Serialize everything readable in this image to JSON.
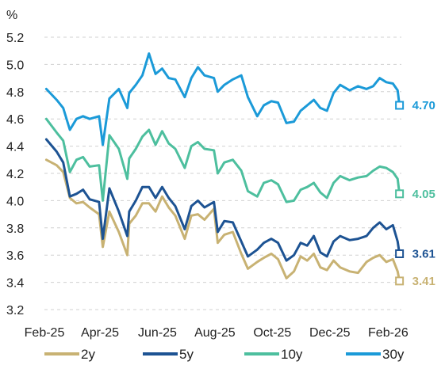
{
  "chart_data": {
    "type": "line",
    "ylabel": "%",
    "ylim": [
      3.2,
      5.2
    ],
    "yticks": [
      3.2,
      3.4,
      3.6,
      3.8,
      4.0,
      4.2,
      4.4,
      4.6,
      4.8,
      5.0,
      5.2
    ],
    "ytick_labels": [
      "3.2",
      "3.4",
      "3.6",
      "3.8",
      "4.0",
      "4.2",
      "4.4",
      "4.6",
      "4.8",
      "5.0",
      "5.2"
    ],
    "xlim": [
      "2025-02-01",
      "2026-02-15"
    ],
    "xticks": [
      "2025-02-01",
      "2025-04-01",
      "2025-06-01",
      "2025-08-01",
      "2025-10-01",
      "2025-12-01",
      "2026-02-01"
    ],
    "xtick_labels": [
      "Feb-25",
      "Apr-25",
      "Jun-25",
      "Aug-25",
      "Oct-25",
      "Dec-25",
      "Feb-26"
    ],
    "grid": "horizontal-dashed",
    "legend": "bottom",
    "series": [
      {
        "name": "2y",
        "color": "#c8b273",
        "end_label": "3.41",
        "points": [
          [
            "2025-02-03",
            4.3
          ],
          [
            "2025-02-14",
            4.26
          ],
          [
            "2025-02-21",
            4.21
          ],
          [
            "2025-02-28",
            4.02
          ],
          [
            "2025-03-07",
            3.98
          ],
          [
            "2025-03-14",
            3.99
          ],
          [
            "2025-03-21",
            3.95
          ],
          [
            "2025-03-31",
            3.9
          ],
          [
            "2025-04-04",
            3.66
          ],
          [
            "2025-04-11",
            3.92
          ],
          [
            "2025-04-21",
            3.77
          ],
          [
            "2025-04-30",
            3.6
          ],
          [
            "2025-05-02",
            3.83
          ],
          [
            "2025-05-09",
            3.89
          ],
          [
            "2025-05-16",
            3.98
          ],
          [
            "2025-05-23",
            3.98
          ],
          [
            "2025-05-30",
            3.92
          ],
          [
            "2025-06-06",
            4.03
          ],
          [
            "2025-06-13",
            3.95
          ],
          [
            "2025-06-20",
            3.89
          ],
          [
            "2025-06-30",
            3.72
          ],
          [
            "2025-07-07",
            3.89
          ],
          [
            "2025-07-14",
            3.9
          ],
          [
            "2025-07-21",
            3.86
          ],
          [
            "2025-07-31",
            3.94
          ],
          [
            "2025-08-04",
            3.69
          ],
          [
            "2025-08-11",
            3.75
          ],
          [
            "2025-08-20",
            3.77
          ],
          [
            "2025-08-29",
            3.61
          ],
          [
            "2025-09-05",
            3.5
          ],
          [
            "2025-09-15",
            3.55
          ],
          [
            "2025-09-22",
            3.58
          ],
          [
            "2025-09-30",
            3.61
          ],
          [
            "2025-10-07",
            3.57
          ],
          [
            "2025-10-16",
            3.43
          ],
          [
            "2025-10-24",
            3.48
          ],
          [
            "2025-10-31",
            3.59
          ],
          [
            "2025-11-07",
            3.56
          ],
          [
            "2025-11-14",
            3.61
          ],
          [
            "2025-11-21",
            3.51
          ],
          [
            "2025-11-28",
            3.49
          ],
          [
            "2025-12-05",
            3.56
          ],
          [
            "2025-12-12",
            3.51
          ],
          [
            "2025-12-22",
            3.48
          ],
          [
            "2025-12-31",
            3.47
          ],
          [
            "2026-01-09",
            3.55
          ],
          [
            "2026-01-16",
            3.58
          ],
          [
            "2026-01-23",
            3.6
          ],
          [
            "2026-01-30",
            3.55
          ],
          [
            "2026-02-06",
            3.57
          ],
          [
            "2026-02-11",
            3.48
          ],
          [
            "2026-02-13",
            3.41
          ]
        ]
      },
      {
        "name": "5y",
        "color": "#1d5393",
        "end_label": "3.61",
        "points": [
          [
            "2025-02-03",
            4.45
          ],
          [
            "2025-02-14",
            4.36
          ],
          [
            "2025-02-21",
            4.28
          ],
          [
            "2025-02-28",
            4.03
          ],
          [
            "2025-03-07",
            4.05
          ],
          [
            "2025-03-14",
            4.08
          ],
          [
            "2025-03-21",
            4.01
          ],
          [
            "2025-03-31",
            3.99
          ],
          [
            "2025-04-04",
            3.72
          ],
          [
            "2025-04-11",
            4.09
          ],
          [
            "2025-04-21",
            3.92
          ],
          [
            "2025-04-30",
            3.74
          ],
          [
            "2025-05-02",
            3.92
          ],
          [
            "2025-05-09",
            4.0
          ],
          [
            "2025-05-16",
            4.1
          ],
          [
            "2025-05-23",
            4.1
          ],
          [
            "2025-05-30",
            4.02
          ],
          [
            "2025-06-06",
            4.1
          ],
          [
            "2025-06-13",
            4.02
          ],
          [
            "2025-06-20",
            3.96
          ],
          [
            "2025-06-30",
            3.79
          ],
          [
            "2025-07-07",
            3.96
          ],
          [
            "2025-07-14",
            4.0
          ],
          [
            "2025-07-21",
            3.95
          ],
          [
            "2025-07-31",
            3.99
          ],
          [
            "2025-08-04",
            3.77
          ],
          [
            "2025-08-11",
            3.85
          ],
          [
            "2025-08-20",
            3.84
          ],
          [
            "2025-08-29",
            3.7
          ],
          [
            "2025-09-05",
            3.59
          ],
          [
            "2025-09-15",
            3.64
          ],
          [
            "2025-09-22",
            3.69
          ],
          [
            "2025-09-30",
            3.72
          ],
          [
            "2025-10-07",
            3.69
          ],
          [
            "2025-10-16",
            3.56
          ],
          [
            "2025-10-24",
            3.6
          ],
          [
            "2025-10-31",
            3.69
          ],
          [
            "2025-11-07",
            3.67
          ],
          [
            "2025-11-14",
            3.74
          ],
          [
            "2025-11-21",
            3.62
          ],
          [
            "2025-11-28",
            3.59
          ],
          [
            "2025-12-05",
            3.7
          ],
          [
            "2025-12-12",
            3.74
          ],
          [
            "2025-12-22",
            3.71
          ],
          [
            "2025-12-31",
            3.72
          ],
          [
            "2026-01-09",
            3.74
          ],
          [
            "2026-01-16",
            3.8
          ],
          [
            "2026-01-23",
            3.84
          ],
          [
            "2026-01-30",
            3.79
          ],
          [
            "2026-02-06",
            3.82
          ],
          [
            "2026-02-11",
            3.7
          ],
          [
            "2026-02-13",
            3.61
          ]
        ]
      },
      {
        "name": "10y",
        "color": "#4dbf9e",
        "end_label": "4.05",
        "points": [
          [
            "2025-02-03",
            4.6
          ],
          [
            "2025-02-14",
            4.5
          ],
          [
            "2025-02-21",
            4.44
          ],
          [
            "2025-02-28",
            4.21
          ],
          [
            "2025-03-07",
            4.3
          ],
          [
            "2025-03-14",
            4.32
          ],
          [
            "2025-03-21",
            4.25
          ],
          [
            "2025-03-31",
            4.26
          ],
          [
            "2025-04-04",
            4.0
          ],
          [
            "2025-04-11",
            4.48
          ],
          [
            "2025-04-21",
            4.38
          ],
          [
            "2025-04-30",
            4.16
          ],
          [
            "2025-05-02",
            4.31
          ],
          [
            "2025-05-09",
            4.38
          ],
          [
            "2025-05-16",
            4.47
          ],
          [
            "2025-05-23",
            4.52
          ],
          [
            "2025-05-30",
            4.41
          ],
          [
            "2025-06-06",
            4.51
          ],
          [
            "2025-06-13",
            4.42
          ],
          [
            "2025-06-20",
            4.38
          ],
          [
            "2025-06-30",
            4.24
          ],
          [
            "2025-07-07",
            4.4
          ],
          [
            "2025-07-14",
            4.43
          ],
          [
            "2025-07-21",
            4.38
          ],
          [
            "2025-07-31",
            4.37
          ],
          [
            "2025-08-04",
            4.2
          ],
          [
            "2025-08-11",
            4.28
          ],
          [
            "2025-08-20",
            4.3
          ],
          [
            "2025-08-29",
            4.22
          ],
          [
            "2025-09-05",
            4.07
          ],
          [
            "2025-09-15",
            4.03
          ],
          [
            "2025-09-22",
            4.13
          ],
          [
            "2025-09-30",
            4.15
          ],
          [
            "2025-10-07",
            4.12
          ],
          [
            "2025-10-16",
            3.99
          ],
          [
            "2025-10-24",
            4.0
          ],
          [
            "2025-10-31",
            4.08
          ],
          [
            "2025-11-07",
            4.1
          ],
          [
            "2025-11-14",
            4.13
          ],
          [
            "2025-11-21",
            4.06
          ],
          [
            "2025-11-28",
            4.02
          ],
          [
            "2025-12-05",
            4.13
          ],
          [
            "2025-12-12",
            4.18
          ],
          [
            "2025-12-22",
            4.15
          ],
          [
            "2025-12-31",
            4.17
          ],
          [
            "2026-01-09",
            4.18
          ],
          [
            "2026-01-16",
            4.22
          ],
          [
            "2026-01-23",
            4.25
          ],
          [
            "2026-01-30",
            4.24
          ],
          [
            "2026-02-06",
            4.21
          ],
          [
            "2026-02-11",
            4.16
          ],
          [
            "2026-02-13",
            4.05
          ]
        ]
      },
      {
        "name": "30y",
        "color": "#1b9ad8",
        "end_label": "4.70",
        "points": [
          [
            "2025-02-03",
            4.82
          ],
          [
            "2025-02-14",
            4.74
          ],
          [
            "2025-02-21",
            4.68
          ],
          [
            "2025-02-28",
            4.52
          ],
          [
            "2025-03-07",
            4.6
          ],
          [
            "2025-03-14",
            4.62
          ],
          [
            "2025-03-21",
            4.6
          ],
          [
            "2025-03-31",
            4.62
          ],
          [
            "2025-04-04",
            4.41
          ],
          [
            "2025-04-11",
            4.75
          ],
          [
            "2025-04-21",
            4.82
          ],
          [
            "2025-04-30",
            4.68
          ],
          [
            "2025-05-02",
            4.79
          ],
          [
            "2025-05-09",
            4.85
          ],
          [
            "2025-05-16",
            4.92
          ],
          [
            "2025-05-23",
            5.08
          ],
          [
            "2025-05-30",
            4.93
          ],
          [
            "2025-06-06",
            4.97
          ],
          [
            "2025-06-13",
            4.9
          ],
          [
            "2025-06-20",
            4.89
          ],
          [
            "2025-06-30",
            4.76
          ],
          [
            "2025-07-07",
            4.9
          ],
          [
            "2025-07-14",
            4.98
          ],
          [
            "2025-07-21",
            4.92
          ],
          [
            "2025-07-31",
            4.9
          ],
          [
            "2025-08-04",
            4.8
          ],
          [
            "2025-08-11",
            4.85
          ],
          [
            "2025-08-20",
            4.89
          ],
          [
            "2025-08-29",
            4.92
          ],
          [
            "2025-09-05",
            4.76
          ],
          [
            "2025-09-15",
            4.62
          ],
          [
            "2025-09-22",
            4.7
          ],
          [
            "2025-09-30",
            4.73
          ],
          [
            "2025-10-07",
            4.72
          ],
          [
            "2025-10-16",
            4.57
          ],
          [
            "2025-10-24",
            4.58
          ],
          [
            "2025-10-31",
            4.66
          ],
          [
            "2025-11-07",
            4.7
          ],
          [
            "2025-11-14",
            4.74
          ],
          [
            "2025-11-21",
            4.68
          ],
          [
            "2025-11-28",
            4.66
          ],
          [
            "2025-12-05",
            4.79
          ],
          [
            "2025-12-12",
            4.85
          ],
          [
            "2025-12-22",
            4.81
          ],
          [
            "2025-12-31",
            4.84
          ],
          [
            "2026-01-09",
            4.82
          ],
          [
            "2026-01-16",
            4.84
          ],
          [
            "2026-01-23",
            4.9
          ],
          [
            "2026-01-30",
            4.87
          ],
          [
            "2026-02-06",
            4.86
          ],
          [
            "2026-02-11",
            4.81
          ],
          [
            "2026-02-13",
            4.7
          ]
        ]
      }
    ]
  }
}
